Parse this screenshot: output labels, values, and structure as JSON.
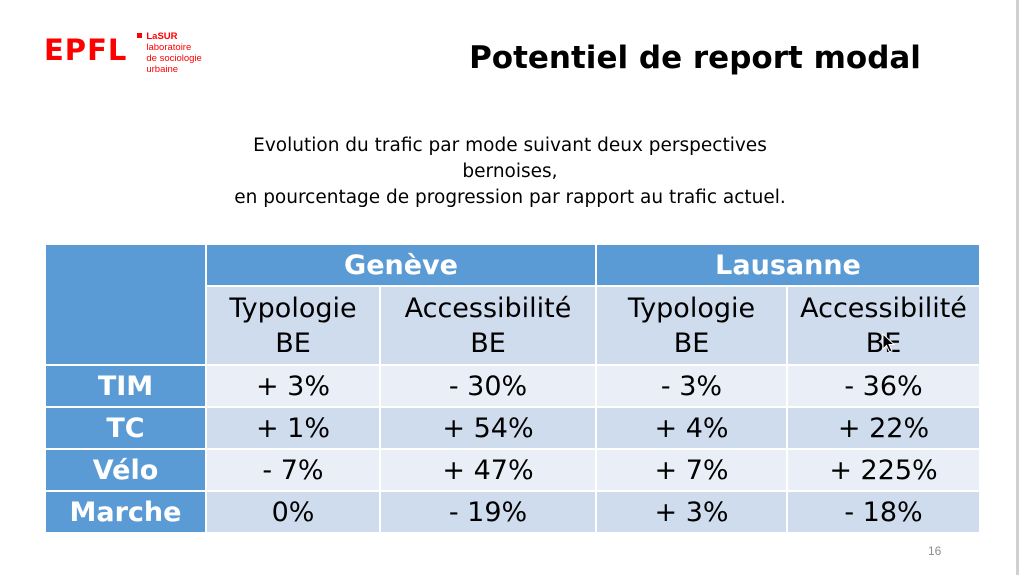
{
  "logo": {
    "mark": "EPFL",
    "lab_name": "LaSUR",
    "lab_lines": [
      "laboratoire",
      "de sociologie",
      "urbaine"
    ]
  },
  "title": "Potentiel de report modal",
  "subtitle": {
    "line1": "Evolution du trafic par mode suivant deux perspectives",
    "line2": "bernoises,",
    "line3": "en pourcentage de progression par rapport au trafic actuel."
  },
  "table": {
    "cities": [
      "Genève",
      "Lausanne"
    ],
    "subheaders": [
      {
        "line1": "Typologie",
        "line2": "BE"
      },
      {
        "line1": "Accessibilité",
        "line2": "BE"
      },
      {
        "line1": "Typologie",
        "line2": "BE"
      },
      {
        "line1": "Accessibilité",
        "line2": "BE"
      }
    ],
    "rows": [
      {
        "mode": "TIM",
        "values": [
          "+ 3%",
          "- 30%",
          "- 3%",
          "- 36%"
        ]
      },
      {
        "mode": "TC",
        "values": [
          "+ 1%",
          "+ 54%",
          "+ 4%",
          "+ 22%"
        ]
      },
      {
        "mode": "Vélo",
        "values": [
          "- 7%",
          "+ 47%",
          "+ 7%",
          "+ 225%"
        ]
      },
      {
        "mode": "Marche",
        "values": [
          "0%",
          "- 19%",
          "+ 3%",
          "- 18%"
        ]
      }
    ]
  },
  "page_number": "16",
  "colors": {
    "brand_red": "#ff0000",
    "header_blue": "#5b9bd5",
    "row_light": "#e9eef7",
    "row_dark": "#cfdced"
  }
}
